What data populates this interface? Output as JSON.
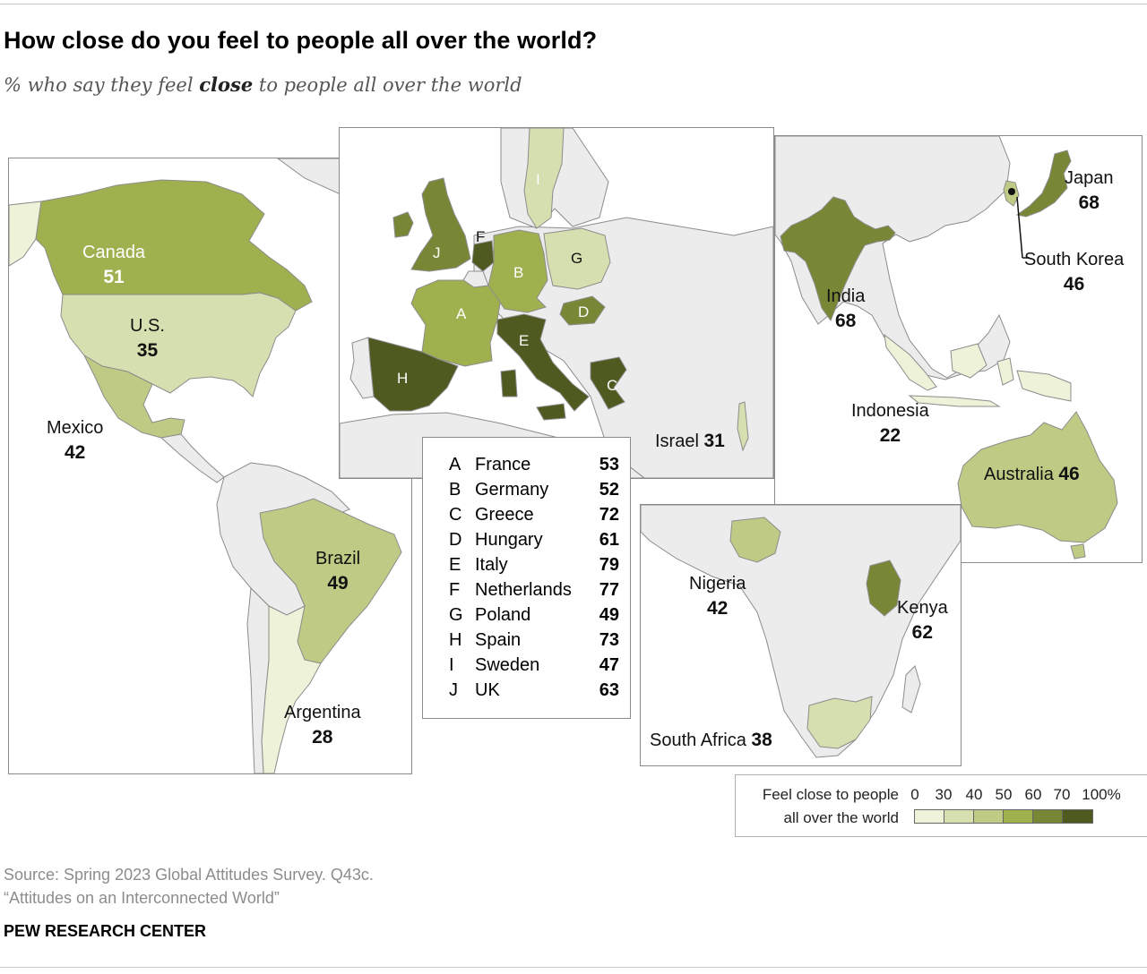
{
  "title": "How close do you feel to people all over the world?",
  "subtitle": {
    "pre": "% who say they feel ",
    "bold": "close",
    "post": " to people all over the world"
  },
  "colors": {
    "bin_0_30": "#eef2d8",
    "bin_30_40": "#d6dfaf",
    "bin_40_50": "#bfcb85",
    "bin_50_60": "#9fb04f",
    "bin_60_70": "#788736",
    "bin_70_100": "#4e5a1f",
    "no_data": "#ececec",
    "border": "#8c8c8c"
  },
  "countries": {
    "canada": {
      "name": "Canada",
      "value": "51"
    },
    "us": {
      "name": "U.S.",
      "value": "35"
    },
    "mexico": {
      "name": "Mexico",
      "value": "42"
    },
    "brazil": {
      "name": "Brazil",
      "value": "49"
    },
    "argentina": {
      "name": "Argentina",
      "value": "28"
    },
    "israel": {
      "name": "Israel",
      "value": "31"
    },
    "india": {
      "name": "India",
      "value": "68"
    },
    "japan": {
      "name": "Japan",
      "value": "68"
    },
    "south_korea": {
      "name": "South Korea",
      "value": "46"
    },
    "indonesia": {
      "name": "Indonesia",
      "value": "22"
    },
    "australia": {
      "name": "Australia",
      "value": "46"
    },
    "nigeria": {
      "name": "Nigeria",
      "value": "42"
    },
    "kenya": {
      "name": "Kenya",
      "value": "62"
    },
    "south_africa": {
      "name": "South Africa",
      "value": "38"
    }
  },
  "europe_key": [
    {
      "letter": "A",
      "name": "France",
      "value": "53"
    },
    {
      "letter": "B",
      "name": "Germany",
      "value": "52"
    },
    {
      "letter": "C",
      "name": "Greece",
      "value": "72"
    },
    {
      "letter": "D",
      "name": "Hungary",
      "value": "61"
    },
    {
      "letter": "E",
      "name": "Italy",
      "value": "79"
    },
    {
      "letter": "F",
      "name": "Netherlands",
      "value": "77"
    },
    {
      "letter": "G",
      "name": "Poland",
      "value": "49"
    },
    {
      "letter": "H",
      "name": "Spain",
      "value": "73"
    },
    {
      "letter": "I",
      "name": "Sweden",
      "value": "47"
    },
    {
      "letter": "J",
      "name": "UK",
      "value": "63"
    }
  ],
  "legend": {
    "caption_line1": "Feel close to people",
    "caption_line2": "all over the world",
    "ticks": [
      "0",
      "30",
      "40",
      "50",
      "60",
      "70",
      "100%"
    ]
  },
  "source_line1": "Source: Spring 2023 Global Attitudes Survey. Q43c.",
  "source_line2": "“Attitudes on an Interconnected World”",
  "brand": "PEW RESEARCH CENTER"
}
